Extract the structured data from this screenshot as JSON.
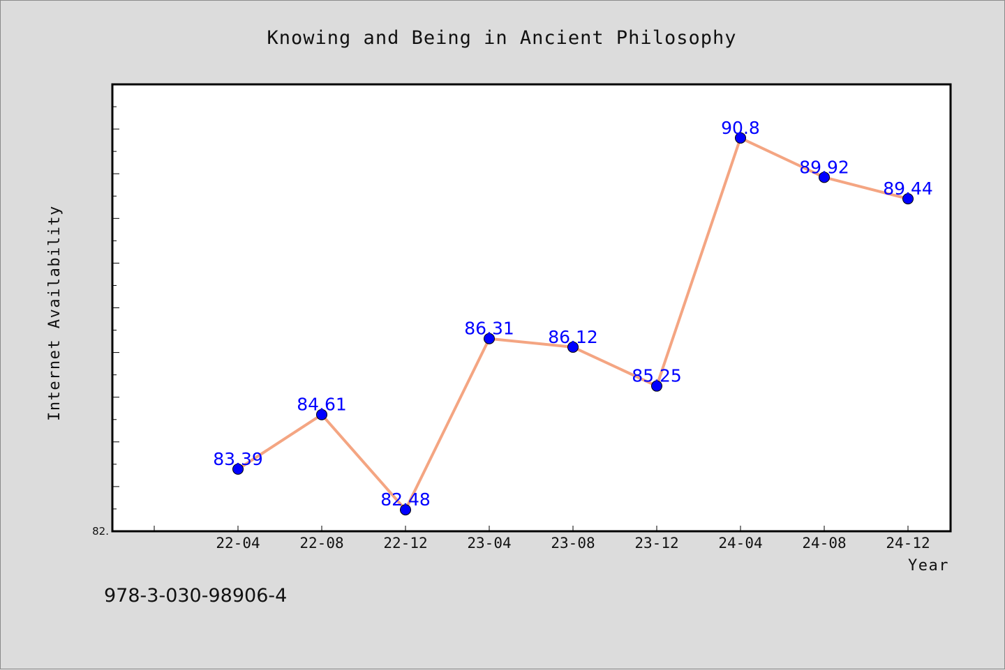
{
  "chart_data": {
    "type": "line",
    "title": "Knowing and Being in Ancient Philosophy",
    "xlabel": "Year",
    "ylabel": "Internet Availability",
    "categories": [
      "22-04",
      "22-08",
      "22-12",
      "23-04",
      "23-08",
      "23-12",
      "24-04",
      "24-08",
      "24-12"
    ],
    "values": [
      83.39,
      84.61,
      82.48,
      86.31,
      86.12,
      85.25,
      90.8,
      89.92,
      89.44
    ],
    "data_labels": [
      "83.39",
      "84.61",
      "82.48",
      "86.31",
      "86.12",
      "85.25",
      "90.8",
      "89.92",
      "89.44"
    ],
    "ylim": [
      82,
      92
    ],
    "y_min_tick_label": "82.",
    "grid": false,
    "line_color": "#f4a582",
    "marker_color": "#0000ff",
    "label_color": "#0000ff"
  },
  "footer": {
    "isbn": "978-3-030-98906-4"
  }
}
